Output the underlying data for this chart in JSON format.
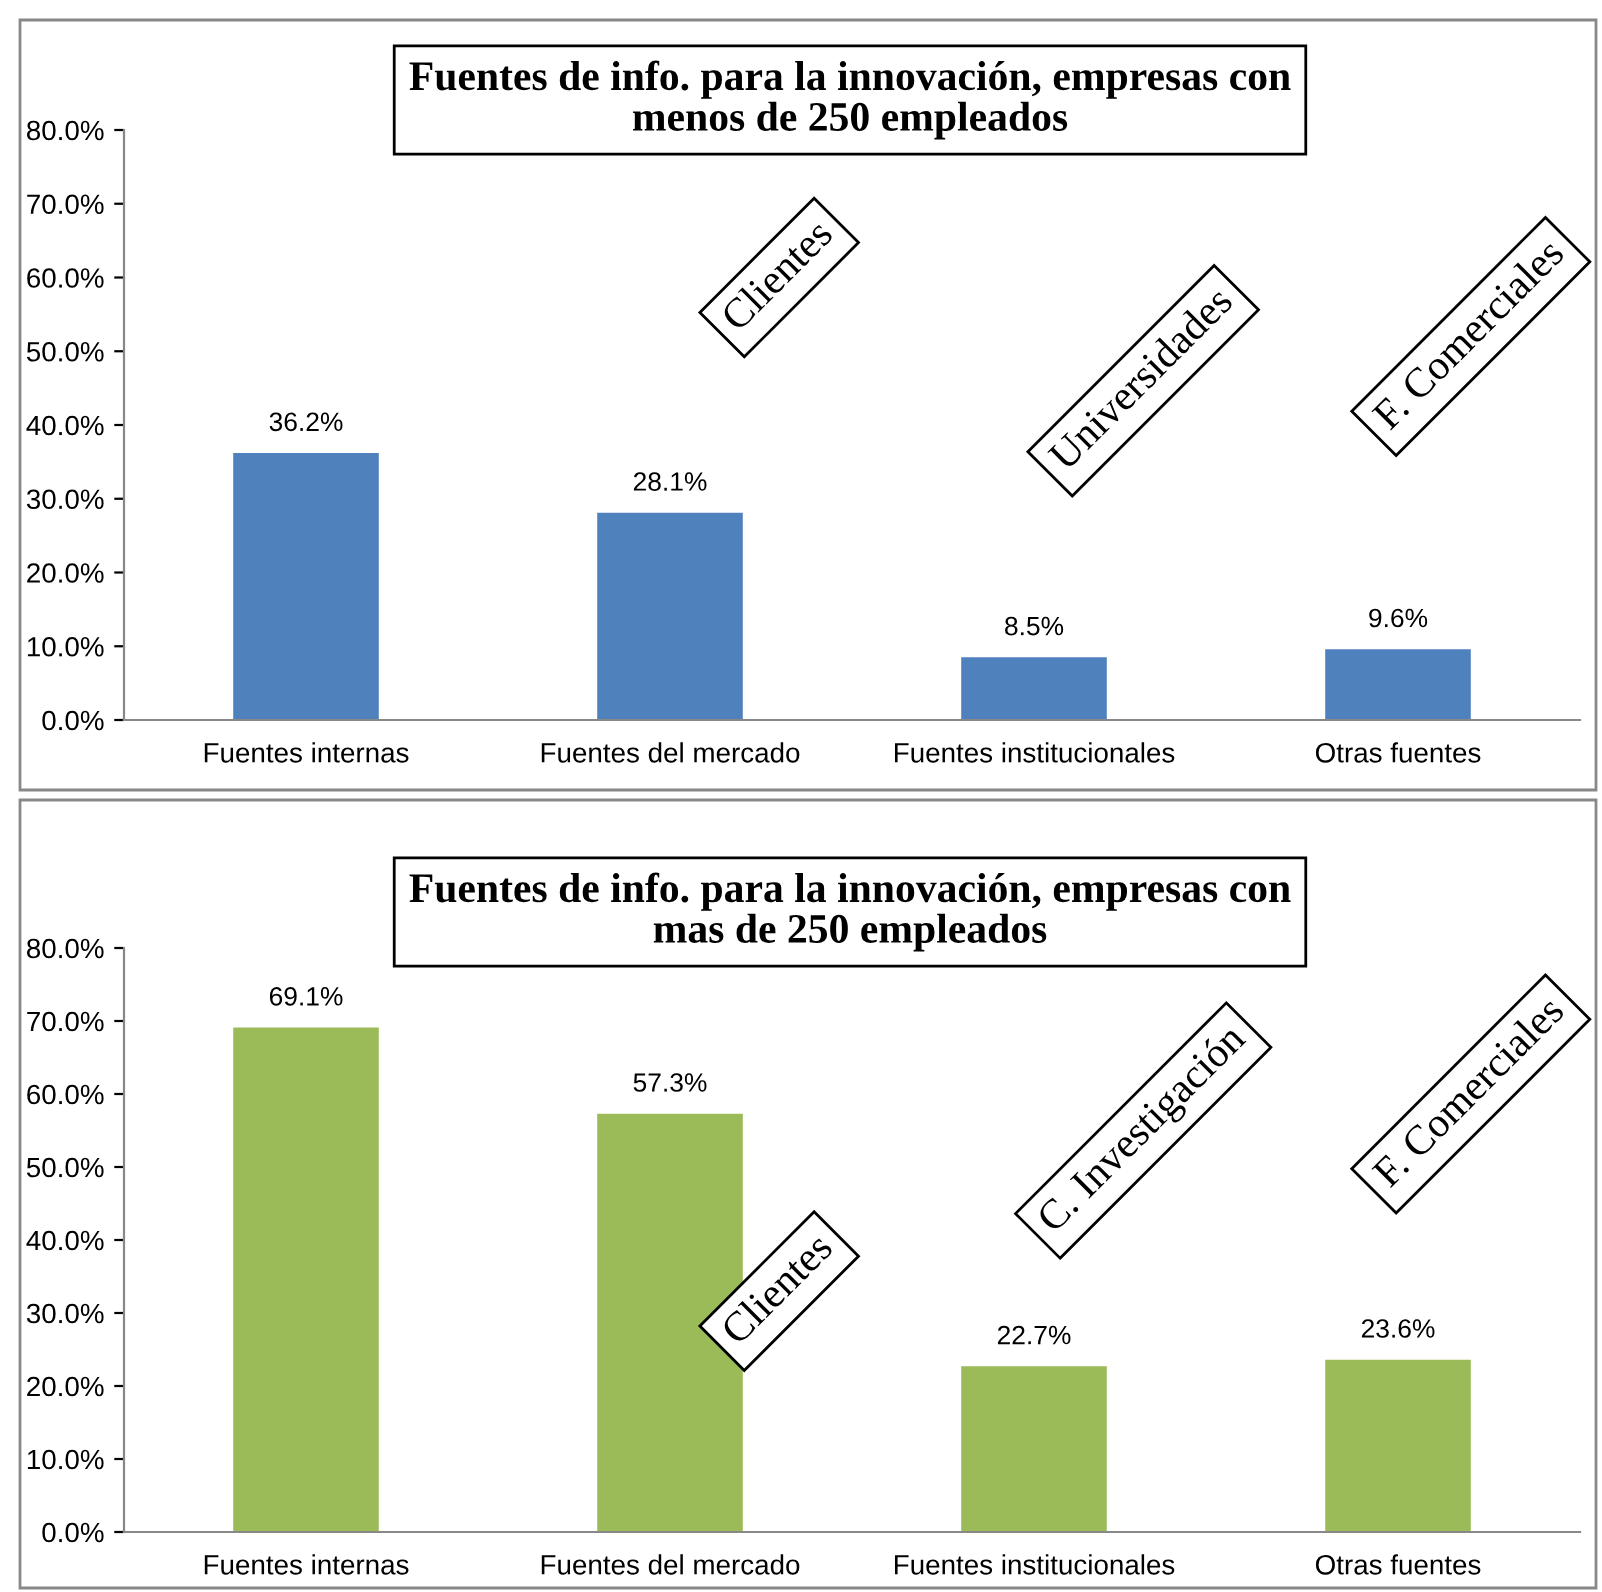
{
  "chart_data": [
    {
      "type": "bar",
      "title": "Fuentes de info. para la innovación, empresas con\nmenos de 250 empleados",
      "categories": [
        "Fuentes internas",
        "Fuentes del mercado",
        "Fuentes institucionales",
        "Otras fuentes"
      ],
      "values": [
        36.2,
        28.1,
        8.5,
        9.6
      ],
      "value_labels": [
        "36.2%",
        "28.1%",
        "8.5%",
        "9.6%"
      ],
      "color": "#4f81bd",
      "ylim": [
        0,
        80
      ],
      "yticks": [
        {
          "value": 0,
          "label": "0.0%"
        },
        {
          "value": 10,
          "label": "10.0%"
        },
        {
          "value": 20,
          "label": "20.0%"
        },
        {
          "value": 30,
          "label": "30.0%"
        },
        {
          "value": 40,
          "label": "40.0%"
        },
        {
          "value": 50,
          "label": "50.0%"
        },
        {
          "value": 60,
          "label": "60.0%"
        },
        {
          "value": 70,
          "label": "70.0%"
        },
        {
          "value": 80,
          "label": "80.0%"
        }
      ],
      "annotations": [
        "Clientes",
        "Universidades",
        "F. Comerciales"
      ]
    },
    {
      "type": "bar",
      "title": "Fuentes de info. para la innovación, empresas con\nmas de 250 empleados",
      "categories": [
        "Fuentes internas",
        "Fuentes del mercado",
        "Fuentes institucionales",
        "Otras fuentes"
      ],
      "values": [
        69.1,
        57.3,
        22.7,
        23.6
      ],
      "value_labels": [
        "69.1%",
        "57.3%",
        "22.7%",
        "23.6%"
      ],
      "color": "#9bbb59",
      "ylim": [
        0,
        80
      ],
      "yticks": [
        {
          "value": 0,
          "label": "0.0%"
        },
        {
          "value": 10,
          "label": "10.0%"
        },
        {
          "value": 20,
          "label": "20.0%"
        },
        {
          "value": 30,
          "label": "30.0%"
        },
        {
          "value": 40,
          "label": "40.0%"
        },
        {
          "value": 50,
          "label": "50.0%"
        },
        {
          "value": 60,
          "label": "60.0%"
        },
        {
          "value": 70,
          "label": "70.0%"
        },
        {
          "value": 80,
          "label": "80.0%"
        }
      ],
      "annotations": [
        "Clientes",
        "C. Investigación",
        "F. Comerciales"
      ]
    }
  ]
}
